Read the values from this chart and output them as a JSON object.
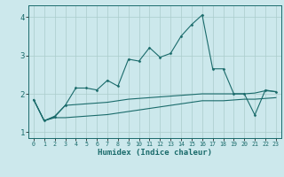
{
  "xlabel": "Humidex (Indice chaleur)",
  "bg_color": "#cce8ec",
  "grid_color": "#aacccc",
  "line_color": "#1a6b6b",
  "xlim": [
    -0.5,
    23.5
  ],
  "ylim": [
    0.85,
    4.3
  ],
  "yticks": [
    1,
    2,
    3,
    4
  ],
  "xticks": [
    0,
    1,
    2,
    3,
    4,
    5,
    6,
    7,
    8,
    9,
    10,
    11,
    12,
    13,
    14,
    15,
    16,
    17,
    18,
    19,
    20,
    21,
    22,
    23
  ],
  "series_main": {
    "x": [
      0,
      1,
      2,
      3,
      4,
      5,
      6,
      7,
      8,
      9,
      10,
      11,
      12,
      13,
      14,
      15,
      16,
      17,
      18,
      19,
      20,
      21,
      22,
      23
    ],
    "y": [
      1.85,
      1.3,
      1.4,
      1.7,
      2.15,
      2.15,
      2.1,
      2.35,
      2.2,
      2.9,
      2.85,
      3.2,
      2.95,
      3.05,
      3.5,
      3.8,
      4.05,
      2.65,
      2.65,
      2.0,
      2.0,
      1.45,
      2.1,
      2.05
    ]
  },
  "series_lower": {
    "x": [
      0,
      1,
      2,
      3,
      4,
      5,
      6,
      7,
      8,
      9,
      10,
      11,
      12,
      13,
      14,
      15,
      16,
      17,
      18,
      19,
      20,
      21,
      22,
      23
    ],
    "y": [
      1.85,
      1.3,
      1.42,
      1.7,
      1.72,
      1.74,
      1.76,
      1.78,
      1.82,
      1.86,
      1.88,
      1.9,
      1.92,
      1.94,
      1.96,
      1.98,
      2.0,
      2.0,
      2.0,
      2.0,
      2.0,
      2.02,
      2.08,
      2.06
    ]
  },
  "series_third": {
    "x": [
      0,
      1,
      2,
      3,
      4,
      5,
      6,
      7,
      8,
      9,
      10,
      11,
      12,
      13,
      14,
      15,
      16,
      17,
      18,
      19,
      20,
      21,
      22,
      23
    ],
    "y": [
      1.85,
      1.3,
      1.38,
      1.38,
      1.4,
      1.42,
      1.44,
      1.46,
      1.5,
      1.54,
      1.58,
      1.62,
      1.66,
      1.7,
      1.74,
      1.78,
      1.82,
      1.82,
      1.82,
      1.84,
      1.86,
      1.86,
      1.88,
      1.9
    ]
  }
}
